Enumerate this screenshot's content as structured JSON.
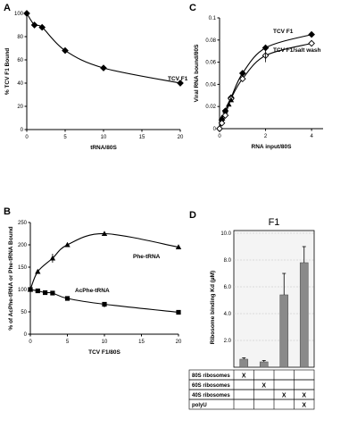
{
  "chart_data": [
    {
      "panel": "A",
      "type": "line",
      "xlabel": "tRNA/80S",
      "ylabel": "% TCV F1 Bound",
      "xlim": [
        0,
        20
      ],
      "ylim": [
        0,
        100
      ],
      "xticks": [
        "0",
        "5",
        "10",
        "15",
        "20"
      ],
      "yticks": [
        "0",
        "20",
        "40",
        "60",
        "80",
        "100"
      ],
      "series": [
        {
          "name": "TCV F1",
          "marker": "diamond-filled",
          "x": [
            0,
            1,
            2,
            5,
            10,
            20
          ],
          "y": [
            100,
            90,
            88,
            68,
            53,
            40
          ]
        }
      ]
    },
    {
      "panel": "C",
      "type": "line",
      "xlabel": "RNA input/80S",
      "ylabel": "Viral RNA bound/80S",
      "xlim": [
        0,
        4.5
      ],
      "ylim": [
        0,
        0.1
      ],
      "xticks": [
        "0",
        "2",
        "4"
      ],
      "yticks": [
        "0",
        "0.02",
        "0.04",
        "0.06",
        "0.08",
        "0.1"
      ],
      "series": [
        {
          "name": "TCV F1",
          "marker": "diamond-filled",
          "x": [
            0,
            0.1,
            0.25,
            0.5,
            1.0,
            2.0,
            4.0
          ],
          "y": [
            0,
            0.008,
            0.016,
            0.028,
            0.05,
            0.073,
            0.085
          ]
        },
        {
          "name": "TCV F1/salt wash",
          "marker": "diamond-open",
          "x": [
            0,
            0.1,
            0.25,
            0.5,
            1.0,
            2.0,
            4.0
          ],
          "y": [
            0,
            0.005,
            0.012,
            0.027,
            0.045,
            0.066,
            0.077
          ]
        },
        {
          "name": "",
          "marker": "triangle-filled",
          "x": [
            0.1,
            0.25,
            0.4,
            0.5
          ],
          "y": [
            0.01,
            0.016,
            0.022,
            0.026
          ]
        }
      ]
    },
    {
      "panel": "B",
      "type": "line",
      "xlabel": "TCV F1/80S",
      "ylabel": "% of AcPhe-tRNA or Phe-tRNA Bound",
      "xlim": [
        0,
        20
      ],
      "ylim": [
        0,
        250
      ],
      "xticks": [
        "0",
        "5",
        "10",
        "15",
        "20"
      ],
      "yticks": [
        "0",
        "50",
        "100",
        "150",
        "200",
        "250"
      ],
      "series": [
        {
          "name": "Phe-tRNA",
          "marker": "triangle-filled",
          "x": [
            0,
            1,
            3,
            5,
            10,
            20
          ],
          "y": [
            100,
            140,
            170,
            200,
            225,
            195
          ]
        },
        {
          "name": "AcPhe-tRNA",
          "marker": "square-filled",
          "x": [
            0,
            1,
            2,
            3,
            5,
            10,
            20
          ],
          "y": [
            100,
            97,
            93,
            92,
            80,
            67,
            49
          ]
        }
      ]
    },
    {
      "panel": "D",
      "type": "bar",
      "title": "F1",
      "ylabel": "Ribosome binding Kd (µM)",
      "ylim": [
        0,
        10
      ],
      "yticks": [
        "2.0",
        "4.0",
        "6.0",
        "8.0",
        "10.0"
      ],
      "values": [
        0.6,
        0.4,
        5.4,
        7.8
      ],
      "errors": [
        0.1,
        0.1,
        1.6,
        1.2
      ],
      "conditions": [
        "80S ribosomes",
        "60S ribosomes",
        "40S ribosomes",
        "polyU"
      ],
      "marks": [
        [
          "X",
          "",
          "",
          ""
        ],
        [
          "",
          "X",
          "",
          ""
        ],
        [
          "",
          "",
          "X",
          "X"
        ],
        [
          "",
          "",
          "",
          "X"
        ]
      ]
    }
  ],
  "colors": {
    "bar": "#8a8a8a",
    "axis": "#000000",
    "grid": "#bfbfbf",
    "panel_bg": "#f4f4f4"
  }
}
